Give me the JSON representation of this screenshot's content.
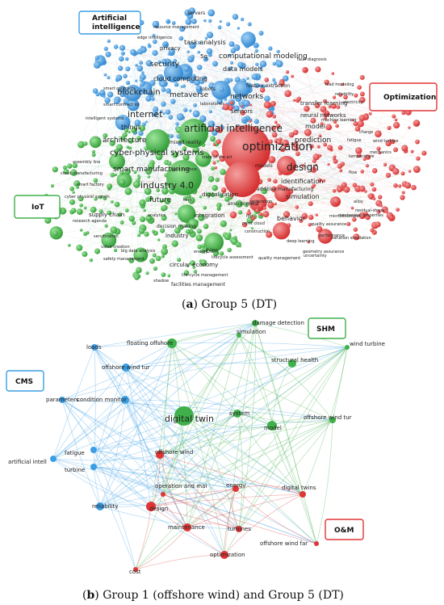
{
  "figure_a": {
    "caption_letter": "a",
    "caption_text": "Group 5 (DT)",
    "clusters": [
      {
        "label": "Artificial intelligence",
        "color": "#3a9ee4"
      },
      {
        "label": "Optimization",
        "color": "#e03535"
      },
      {
        "label": "IoT",
        "color": "#3fb04a"
      }
    ],
    "nodes_blue": [
      "servers",
      "resource management",
      "edge intelligence",
      "task analysis",
      "privacy",
      "5g",
      "computational modeling",
      "security",
      "data models",
      "cloud computing",
      "blockchain",
      "metaverse",
      "robots",
      "networks",
      "smart contracts",
      "smart contract iot",
      "intelligent systems",
      "sensors",
      "laboratories",
      "feature extraction"
    ],
    "nodes_green": [
      "internet",
      "things",
      "artificial intelligence",
      "architecture",
      "mixed reality",
      "cyber-physical systems",
      "smart manufacturing",
      "state of the art",
      "data science",
      "industry 4.0",
      "future",
      "twin",
      "digitalization",
      "environment",
      "integration",
      "supply chain",
      "analytics",
      "decision making",
      "industry",
      "bim",
      "circular economy",
      "life-cycle management",
      "facilities management",
      "shadow",
      "safety management",
      "big data analysis",
      "value creation",
      "servitization",
      "research agenda",
      "cyber physical system",
      "smart factory",
      "cloud manufacturing",
      "assembly line",
      "lifecycle assessment",
      "quality management",
      "construction",
      "point cloud",
      "fog",
      "generation",
      "energy"
    ],
    "nodes_red": [
      "optimization",
      "design",
      "prediction",
      "identification",
      "models",
      "simulation",
      "behavior",
      "additive manufacturing",
      "model",
      "neural networks",
      "transfer learning",
      "fault diagnosis",
      "load modeling",
      "electricity",
      "charge",
      "wind turbine",
      "mechanics",
      "fatigue",
      "residual-stress",
      "alloy",
      "performance",
      "microstructure",
      "geometry assurance",
      "variation simulation",
      "quality assurance",
      "reliability",
      "uncertainty",
      "mechanical properties",
      "flow",
      "temperature",
      "deep learning",
      "machine learning"
    ]
  },
  "figure_b": {
    "caption_letter": "b",
    "caption_text": "Group 1 (offshore wind) and Group 5 (DT)",
    "clusters": [
      {
        "label": "CMS",
        "color": "#3a9ee4"
      },
      {
        "label": "SHM",
        "color": "#3fb04a"
      },
      {
        "label": "O&M",
        "color": "#e03535"
      }
    ],
    "nodes": [
      {
        "label": "loads",
        "cluster": "CMS"
      },
      {
        "label": "offshore wind tur",
        "cluster": "CMS"
      },
      {
        "label": "parameters",
        "cluster": "CMS"
      },
      {
        "label": "condition monitor",
        "cluster": "CMS"
      },
      {
        "label": "fatigue",
        "cluster": "CMS"
      },
      {
        "label": "artificial intell",
        "cluster": "CMS"
      },
      {
        "label": "turbine",
        "cluster": "CMS"
      },
      {
        "label": "reliability",
        "cluster": "CMS"
      },
      {
        "label": "floating offshore",
        "cluster": "SHM"
      },
      {
        "label": "damage detection",
        "cluster": "SHM"
      },
      {
        "label": "simulation",
        "cluster": "SHM"
      },
      {
        "label": "wind turbine",
        "cluster": "SHM"
      },
      {
        "label": "structural health",
        "cluster": "SHM"
      },
      {
        "label": "digital twin",
        "cluster": "SHM"
      },
      {
        "label": "system",
        "cluster": "SHM"
      },
      {
        "label": "model",
        "cluster": "SHM"
      },
      {
        "label": "offshore wind tur",
        "cluster": "SHM"
      },
      {
        "label": "offshore wind",
        "cluster": "O&M"
      },
      {
        "label": "operation and mai",
        "cluster": "O&M"
      },
      {
        "label": "energy",
        "cluster": "O&M"
      },
      {
        "label": "digital twins",
        "cluster": "O&M"
      },
      {
        "label": "design",
        "cluster": "O&M"
      },
      {
        "label": "maintenance",
        "cluster": "O&M"
      },
      {
        "label": "turbines",
        "cluster": "O&M"
      },
      {
        "label": "offshore wind far",
        "cluster": "O&M"
      },
      {
        "label": "optimization",
        "cluster": "O&M"
      },
      {
        "label": "cost",
        "cluster": "O&M"
      }
    ]
  }
}
